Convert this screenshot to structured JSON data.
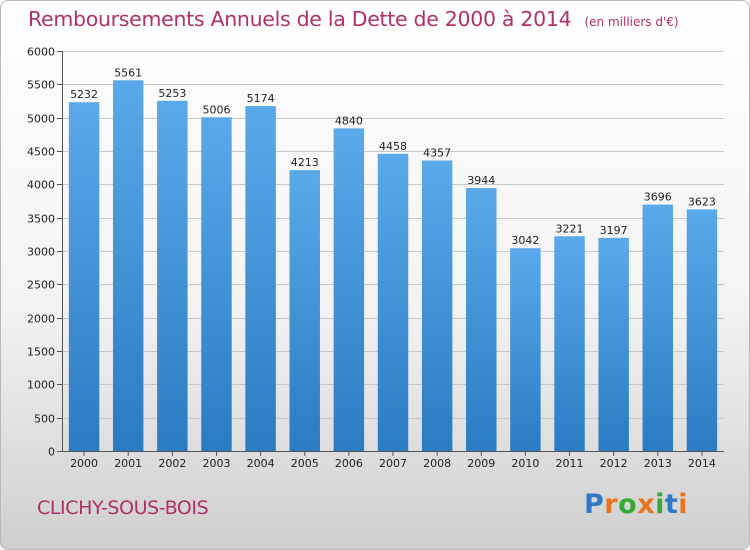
{
  "chart_data": {
    "type": "bar",
    "title": "Remboursements Annuels de la Dette de 2000 à 2014",
    "subtitle": "(en milliers d'€)",
    "categories": [
      "2000",
      "2001",
      "2002",
      "2003",
      "2004",
      "2005",
      "2006",
      "2007",
      "2008",
      "2009",
      "2010",
      "2011",
      "2012",
      "2013",
      "2014"
    ],
    "values": [
      5232,
      5561,
      5253,
      5006,
      5174,
      4213,
      4840,
      4458,
      4357,
      3944,
      3042,
      3221,
      3197,
      3696,
      3623
    ],
    "ylim": [
      0,
      6000
    ],
    "yticks": [
      0,
      500,
      1000,
      1500,
      2000,
      2500,
      3000,
      3500,
      4000,
      4500,
      5000,
      5500,
      6000
    ],
    "grid": true,
    "colors": {
      "bar_top": "#5aa9ea",
      "bar_bottom": "#2a7bc2",
      "title": "#b0306a"
    }
  },
  "footer": {
    "city": "CLICHY-SOUS-BOIS",
    "logo_letters": [
      "P",
      "r",
      "o",
      "x",
      "i",
      "t",
      "i"
    ],
    "logo_colors": [
      "#2f79c7",
      "#e8741d",
      "#39a935",
      "#e8741d",
      "#39a935",
      "#2f79c7",
      "#e8741d"
    ]
  }
}
